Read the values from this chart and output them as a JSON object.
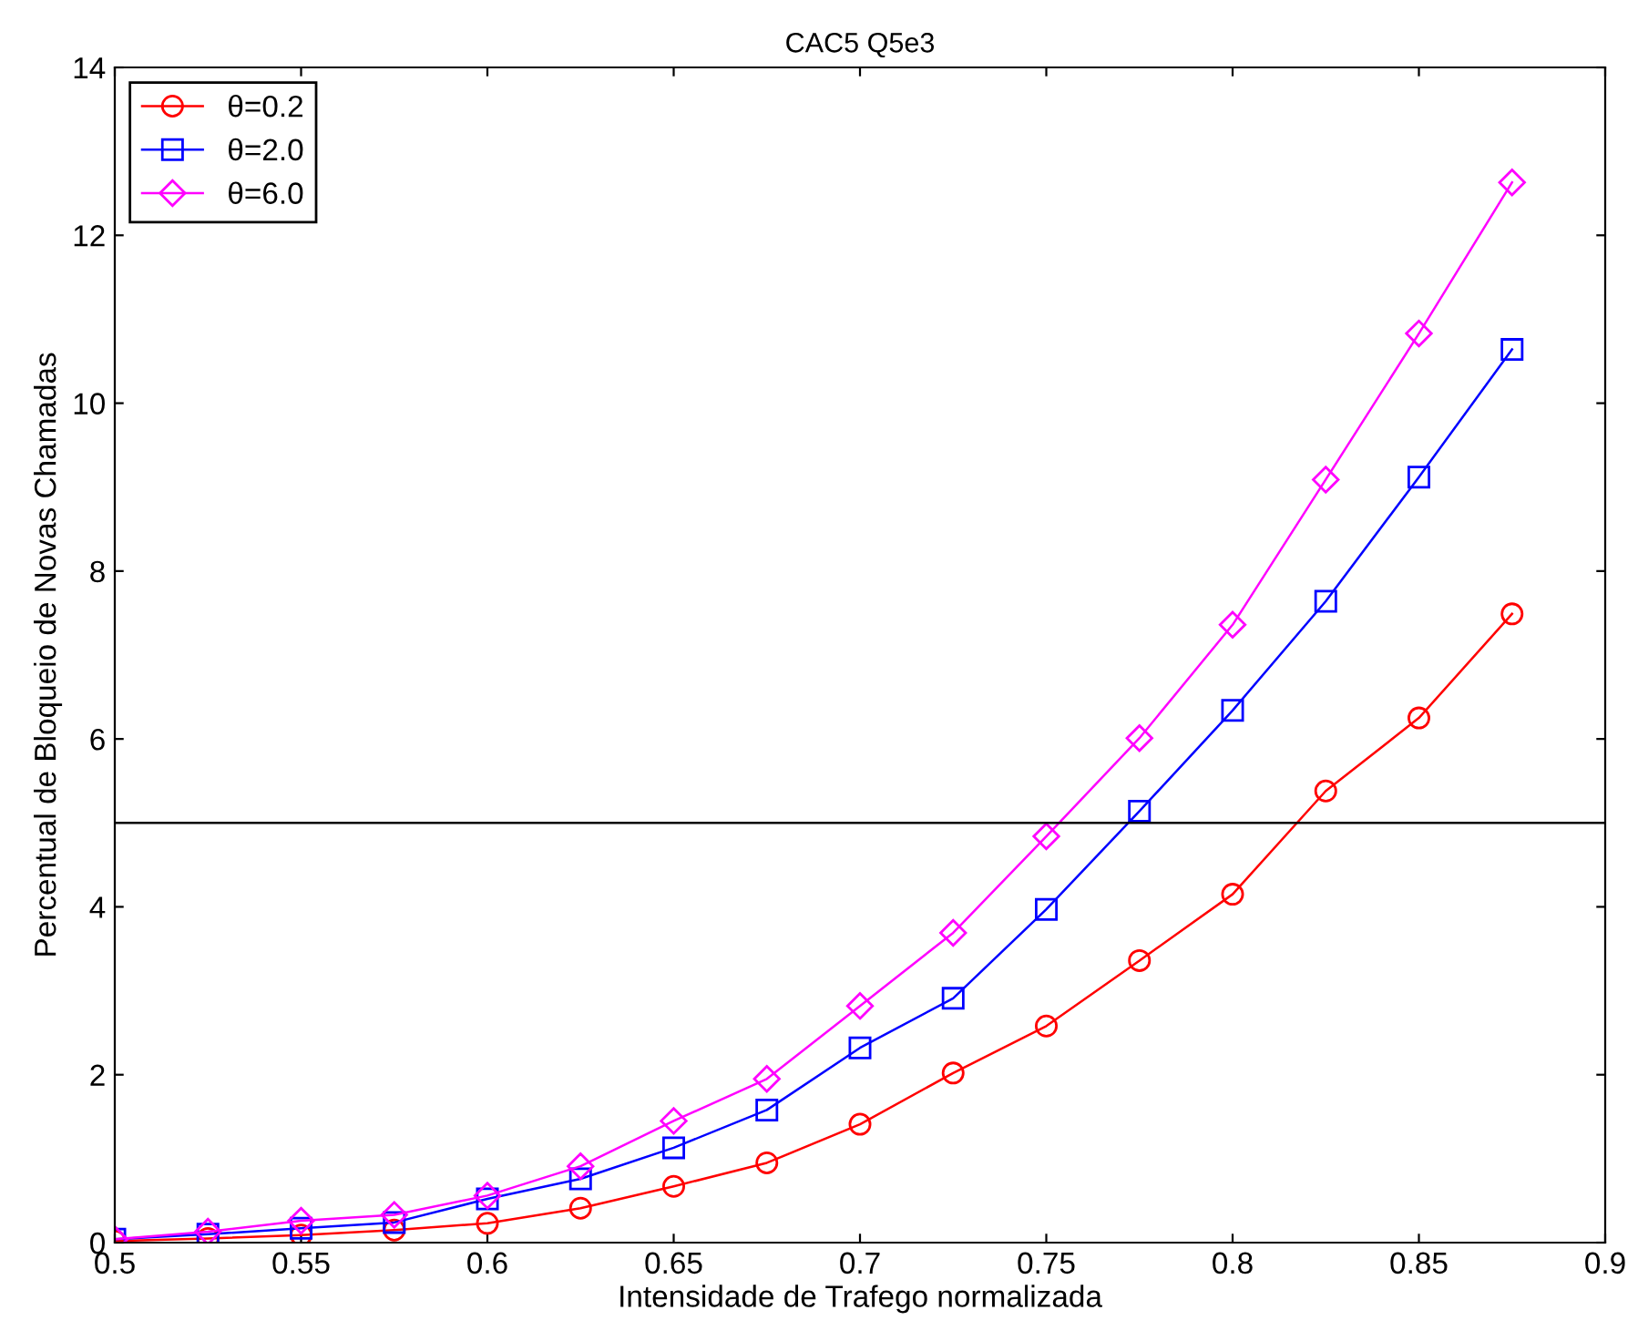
{
  "chart_data": {
    "type": "line",
    "title": "CAC5 Q5e3",
    "xlabel": "Intensidade de Trafego normalizada",
    "ylabel": "Percentual de Bloqueio de Novas Chamadas",
    "x": [
      0.5,
      0.525,
      0.55,
      0.575,
      0.6,
      0.625,
      0.65,
      0.675,
      0.7,
      0.725,
      0.75,
      0.775,
      0.8,
      0.825,
      0.85,
      0.875
    ],
    "series": [
      {
        "name": "θ=0.2",
        "color": "#ff0000",
        "marker": "circle",
        "values": [
          0.02,
          0.05,
          0.09,
          0.15,
          0.23,
          0.41,
          0.67,
          0.95,
          1.41,
          2.02,
          2.58,
          3.36,
          4.15,
          5.38,
          6.25,
          7.49
        ]
      },
      {
        "name": "θ=2.0",
        "color": "#0000ff",
        "marker": "square",
        "values": [
          0.04,
          0.1,
          0.17,
          0.24,
          0.52,
          0.76,
          1.13,
          1.58,
          2.32,
          2.91,
          3.97,
          5.14,
          6.34,
          7.64,
          9.12,
          10.64
        ]
      },
      {
        "name": "θ=6.0",
        "color": "#ff00ff",
        "marker": "diamond",
        "values": [
          0.04,
          0.13,
          0.26,
          0.33,
          0.56,
          0.91,
          1.45,
          1.95,
          2.82,
          3.69,
          4.84,
          6.01,
          7.36,
          9.09,
          10.83,
          12.63
        ]
      }
    ],
    "xlim": [
      0.5,
      0.9
    ],
    "xticks": [
      0.5,
      0.55,
      0.6,
      0.65,
      0.7,
      0.75,
      0.8,
      0.85,
      0.9
    ],
    "ylim": [
      0,
      14
    ],
    "yticks": [
      0,
      2,
      4,
      6,
      8,
      10,
      12,
      14
    ],
    "ref_lines": [
      {
        "axis": "y",
        "value": 5,
        "color": "#000000"
      }
    ],
    "grid": false,
    "legend": "top left",
    "line_style": "solid"
  }
}
